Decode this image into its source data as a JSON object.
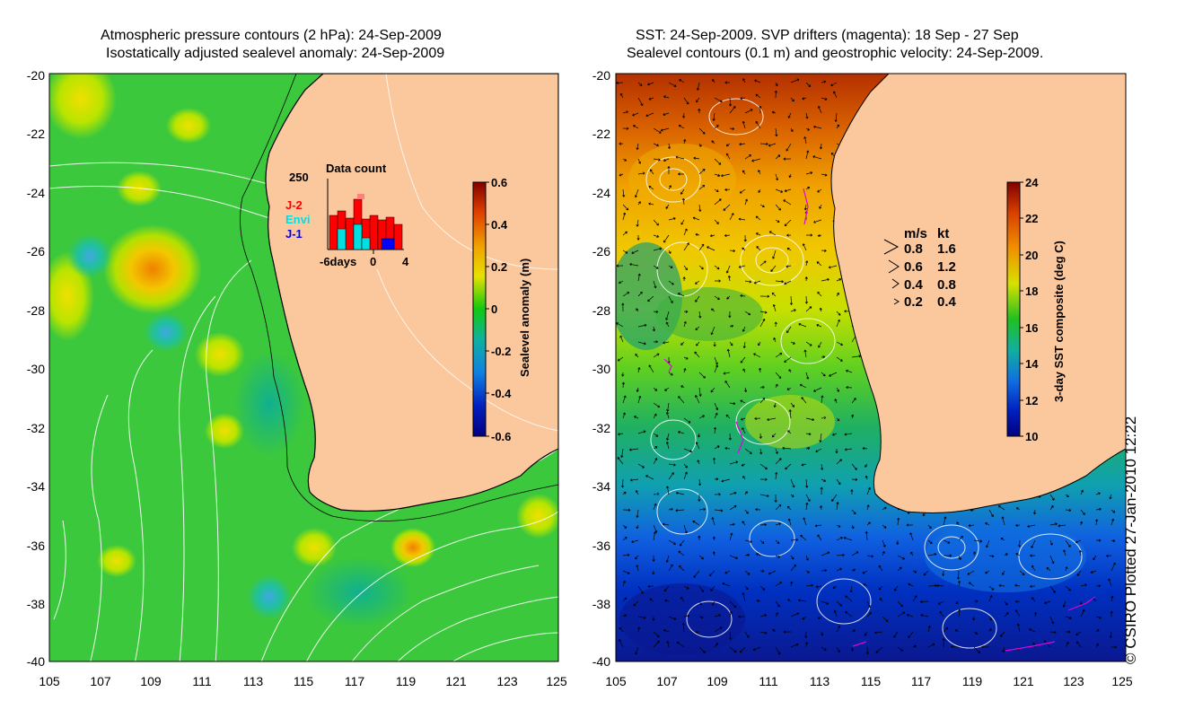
{
  "left_map": {
    "title_line1": "Atmospheric pressure contours (2 hPa): 24-Sep-2009",
    "title_line2": "Isostatically adjusted sealevel anomaly: 24-Sep-2009",
    "y_ticks": [
      "-20",
      "-22",
      "-24",
      "-26",
      "-28",
      "-30",
      "-32",
      "-34",
      "-36",
      "-38",
      "-40"
    ],
    "x_ticks": [
      "105",
      "107",
      "109",
      "111",
      "113",
      "115",
      "117",
      "119",
      "121",
      "123",
      "125"
    ],
    "inset": {
      "title": "Data count",
      "y_max_label": "250",
      "x_labels": [
        "-6days",
        "0",
        "4"
      ],
      "legend": [
        {
          "label": "J-2",
          "color": "#ff0000"
        },
        {
          "label": "Envi",
          "color": "#00e0e0"
        },
        {
          "label": "J-1",
          "color": "#0000ff"
        }
      ]
    },
    "colorbar": {
      "label": "Sealevel anomaly (m)",
      "ticks": [
        "0.6",
        "0.4",
        "0.2",
        "0",
        "-0.2",
        "-0.4",
        "-0.6"
      ]
    }
  },
  "right_map": {
    "title_line1": "SST: 24-Sep-2009. SVP drifters (magenta): 18 Sep - 27 Sep",
    "title_line2": "Sealevel contours (0.1 m) and geostrophic velocity: 24-Sep-2009.",
    "y_ticks": [
      "-20",
      "-22",
      "-24",
      "-26",
      "-28",
      "-30",
      "-32",
      "-34",
      "-36",
      "-38",
      "-40"
    ],
    "x_ticks": [
      "105",
      "107",
      "109",
      "111",
      "113",
      "115",
      "117",
      "119",
      "121",
      "123",
      "125"
    ],
    "velocity_legend": {
      "header_ms": "m/s",
      "header_kt": "kt",
      "rows": [
        {
          "ms": "0.8",
          "kt": "1.6"
        },
        {
          "ms": "0.6",
          "kt": "1.2"
        },
        {
          "ms": "0.4",
          "kt": "0.8"
        },
        {
          "ms": "0.2",
          "kt": "0.4"
        }
      ]
    },
    "colorbar": {
      "label": "3-day SST composite (deg C)",
      "ticks": [
        "24",
        "22",
        "20",
        "18",
        "16",
        "14",
        "12",
        "10"
      ]
    }
  },
  "credit": "© CSIRO Plotted 27-Jan-2010 12:22",
  "colors": {
    "land": "#fbc89e",
    "sla_green": "#1ec81e",
    "sst_warm": "#c83c00"
  }
}
